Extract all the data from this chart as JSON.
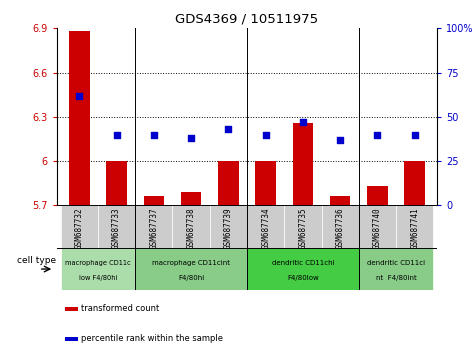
{
  "title": "GDS4369 / 10511975",
  "samples": [
    "GSM687732",
    "GSM687733",
    "GSM687737",
    "GSM687738",
    "GSM687739",
    "GSM687734",
    "GSM687735",
    "GSM687736",
    "GSM687740",
    "GSM687741"
  ],
  "bar_values": [
    6.88,
    6.0,
    5.76,
    5.79,
    6.0,
    6.0,
    6.26,
    5.76,
    5.83,
    6.0
  ],
  "scatter_values": [
    62,
    40,
    40,
    38,
    43,
    40,
    47,
    37,
    40,
    40
  ],
  "ylim_left": [
    5.7,
    6.9
  ],
  "ylim_right": [
    0,
    100
  ],
  "yticks_left": [
    5.7,
    6.0,
    6.3,
    6.6,
    6.9
  ],
  "yticks_right": [
    0,
    25,
    50,
    75,
    100
  ],
  "ytick_labels_left": [
    "5.7",
    "6",
    "6.3",
    "6.6",
    "6.9"
  ],
  "ytick_labels_right": [
    "0",
    "25",
    "50",
    "75",
    "100%"
  ],
  "bar_color": "#cc0000",
  "scatter_color": "#0000cc",
  "bar_width": 0.55,
  "cell_type_groups": [
    {
      "label": "macrophage CD11clow F4/80hi",
      "start": 0,
      "end": 2,
      "color": "#aaddaa",
      "label_line2": ""
    },
    {
      "label": "macrophage CD11cint",
      "label_line2": "F4/80hi",
      "start": 2,
      "end": 5,
      "color": "#88cc88"
    },
    {
      "label": "dendritic CD11chi",
      "label_line2": "F4/80low",
      "start": 5,
      "end": 8,
      "color": "#44cc44"
    },
    {
      "label": "dendritic CD11ci",
      "label_line2": "nt  F4/80int",
      "start": 8,
      "end": 10,
      "color": "#88cc88"
    }
  ],
  "group_boundaries": [
    2,
    5,
    8
  ],
  "legend_items": [
    {
      "label": "transformed count",
      "color": "#cc0000"
    },
    {
      "label": "percentile rank within the sample",
      "color": "#0000cc"
    }
  ],
  "cell_type_label": "cell type",
  "grid_yticks": [
    6.0,
    6.3,
    6.6
  ],
  "background_color": "#ffffff"
}
